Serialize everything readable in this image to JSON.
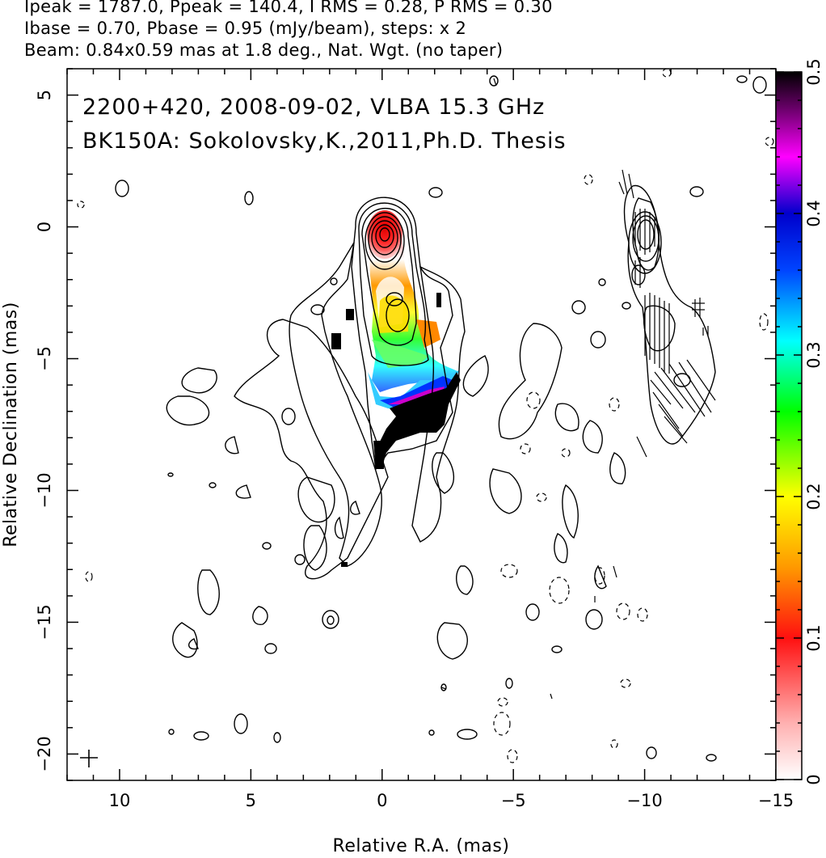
{
  "header": {
    "line1": "Ipeak = 1787.0, Ppeak = 140.4, I RMS = 0.28, P RMS = 0.30",
    "line2": "Ibase = 0.70, Pbase = 0.95 (mJy/beam), steps: x 2",
    "line3": "Beam: 0.84x0.59 mas at 1.8 deg., Nat. Wgt. (no taper)"
  },
  "chart_data": {
    "type": "heatmap",
    "annotation_line1": "2200+420, 2008-09-02, VLBA 15.3 GHz",
    "annotation_line2": "BK150A: Sokolovsky,K.,2011,Ph.D. Thesis",
    "xlabel": "Relative R.A. (mas)",
    "ylabel": "Relative Declination (mas)",
    "xlim": [
      12.0,
      -15.0
    ],
    "ylim": [
      -21.0,
      6.0
    ],
    "x_ticks": [
      10,
      5,
      0,
      -5,
      -10,
      -15
    ],
    "x_tick_labels": [
      "10",
      "5",
      "0",
      "−5",
      "−10",
      "−15"
    ],
    "y_ticks": [
      5,
      0,
      -5,
      -10,
      -15,
      -20
    ],
    "y_tick_labels": [
      "5",
      "0",
      "−5",
      "−10",
      "−15",
      "−20"
    ],
    "colorbar": {
      "range": [
        0,
        0.5
      ],
      "ticks": [
        0,
        0.1,
        0.2,
        0.3,
        0.4,
        0.5
      ],
      "tick_labels": [
        "0",
        "0.1",
        "0.2",
        "0.3",
        "0.4",
        "0.5"
      ],
      "colors": [
        "#ffffff",
        "#ff2020",
        "#ffff00",
        "#00ff00",
        "#00ffff",
        "#0000ff",
        "#ff00ff",
        "#000000"
      ]
    },
    "beam": {
      "major_mas": 0.84,
      "minor_mas": 0.59,
      "pa_deg": 1.8
    },
    "ipeak_mjy": 1787.0,
    "ppeak_mjy": 140.4,
    "contour_base_mjy": 0.7,
    "contour_step_factor": 2,
    "core_position": [
      0,
      0
    ],
    "jet_direction": "south",
    "panels": [
      "total intensity contours with fractional polarization color",
      "polarization contours with EVPA ticks (offset copy at x = -10)"
    ]
  }
}
